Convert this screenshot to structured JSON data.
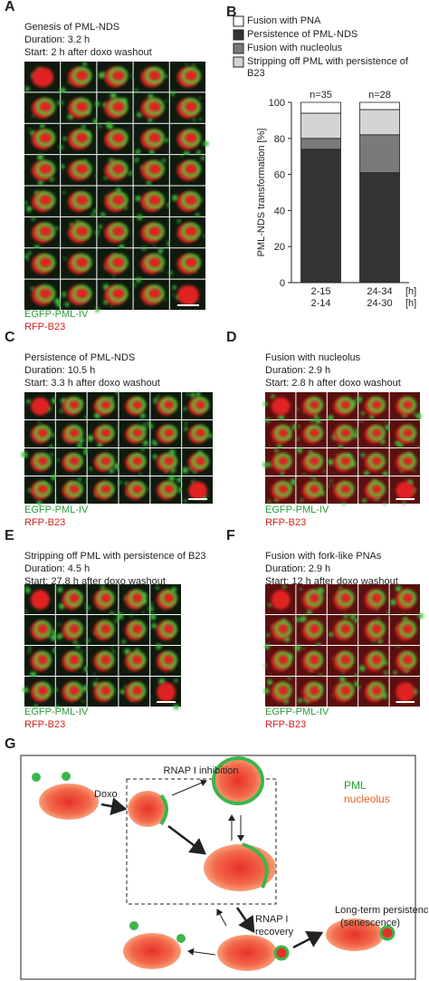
{
  "panels": [
    {
      "letter": "A",
      "lines": [
        "Genesis of PML-NDS",
        "Duration: 3.2 h",
        "Start: 2 h after doxo washout"
      ],
      "labels": [
        "EGFP-PML-IV",
        "RFP-B23"
      ]
    },
    {
      "letter": "C",
      "lines": [
        "Persistence of PML-NDS",
        "Duration: 10.5 h",
        "Start: 3.3 h after doxo washout"
      ],
      "labels": [
        "EGFP-PML-IV",
        "RFP-B23"
      ]
    },
    {
      "letter": "D",
      "lines": [
        "Fusion with nucleolus",
        "Duration: 2.9 h",
        "Start: 2.8 h after doxo washout"
      ],
      "labels": [
        "EGFP-PML-IV",
        "RFP-B23"
      ]
    },
    {
      "letter": "E",
      "lines": [
        "Stripping off PML with persistence of B23",
        "Duration: 4.5 h",
        "Start: 27.8 h after doxo washout"
      ],
      "labels": [
        "EGFP-PML-IV",
        "RFP-B23"
      ]
    },
    {
      "letter": "F",
      "lines": [
        "Fusion with fork-like PNAs",
        "Duration: 2.9 h",
        "Start: 12 h after doxo washout"
      ],
      "labels": [
        "EGFP-PML-IV",
        "RFP-B23"
      ]
    }
  ],
  "chart_data": {
    "type": "stacked-bar",
    "panel_letter": "B",
    "y_label": "PML-NDS transformation [%]",
    "categories": [
      "2-15",
      "24-34"
    ],
    "categories_second_row": [
      "2-14",
      "24-30"
    ],
    "x_unit_labels": [
      "[h]",
      "[h]"
    ],
    "bar_annotations": [
      "n=35",
      "n=28"
    ],
    "series": [
      {
        "name": "Fusion with PNA",
        "color": "#ffffff",
        "values": [
          6,
          4
        ]
      },
      {
        "name": "Persistence of PML-NDS",
        "color": "#333333",
        "values": [
          74,
          61
        ]
      },
      {
        "name": "Fusion with nucleolus",
        "color": "#7a7a7a",
        "values": [
          6,
          21
        ]
      },
      {
        "name": "Stripping off PML with persistence of B23",
        "color": "#d4d4d4",
        "values": [
          14,
          14
        ]
      }
    ],
    "ylim": [
      0,
      100
    ],
    "yticks": [
      0,
      20,
      40,
      60,
      80,
      100
    ]
  },
  "diagram": {
    "letter": "G",
    "box_title": "RNAP I inhibition",
    "legend": [
      "PML",
      "nucleolus"
    ],
    "doxo": "Doxo",
    "recovery": [
      "RNAP I",
      "recovery"
    ],
    "persistence": [
      "Long-term persistence",
      "(senescence)"
    ]
  }
}
